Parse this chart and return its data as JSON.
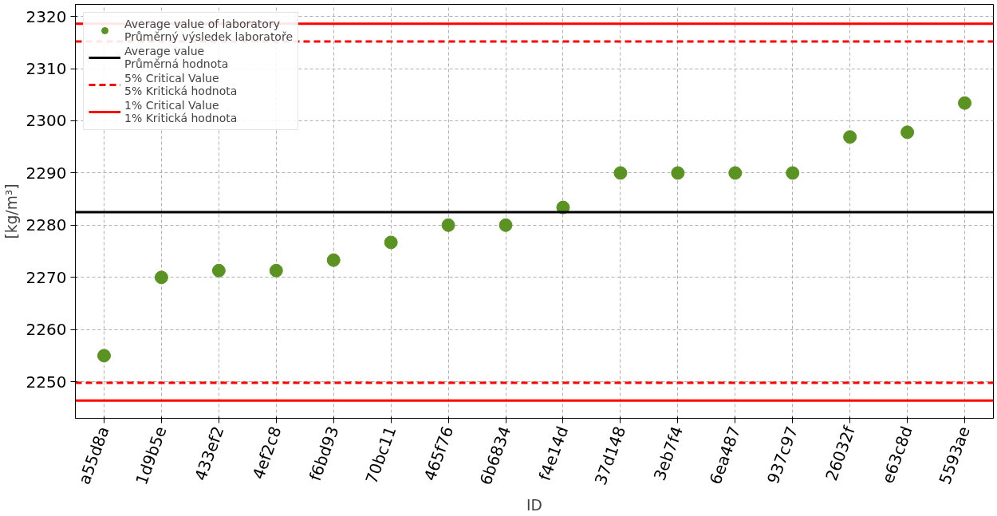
{
  "chart_data": {
    "type": "scatter",
    "xlabel": "ID",
    "ylabel": "[kg/m³]",
    "categories": [
      "a55d8a",
      "1d9b5e",
      "433ef2",
      "4ef2c8",
      "f6bd93",
      "70bc11",
      "465f76",
      "6b6834",
      "f4e14d",
      "37d148",
      "3eb7f4",
      "6ea487",
      "937c97",
      "26032f",
      "e63c8d",
      "5593ae"
    ],
    "series": [
      {
        "name": "Average value of laboratory\nPrůměrný výsledek laboratoře",
        "color": "#5a9322",
        "values": [
          2255,
          2270,
          2271.3,
          2271.3,
          2273.3,
          2276.7,
          2280,
          2280,
          2283.4,
          2290,
          2290,
          2290,
          2290,
          2296.9,
          2297.8,
          2303.4
        ]
      }
    ],
    "ylim": [
      2243,
      2322.3
    ],
    "yticks": [
      2250,
      2260,
      2270,
      2280,
      2290,
      2300,
      2310,
      2320
    ],
    "ref_lines": [
      {
        "axis": "y",
        "value": 2282.5,
        "label": "Average value\nPrůměrná hodnota",
        "color": "#000000",
        "line_style": "solid"
      },
      {
        "axis": "y",
        "value": 2315.2,
        "label": "5% Critical Value\n5% Kritická hodnota",
        "color": "#ff0000",
        "line_style": "dashed"
      },
      {
        "axis": "y",
        "value": 2249.8,
        "color": "#ff0000",
        "line_style": "dashed"
      },
      {
        "axis": "y",
        "value": 2318.6,
        "label": "1% Critical Value\n1% Kritická hodnota",
        "color": "#ff0000",
        "line_style": "solid"
      },
      {
        "axis": "y",
        "value": 2246.4,
        "color": "#ff0000",
        "line_style": "solid"
      }
    ],
    "grid": true,
    "legend": "top left",
    "marker": "circle"
  }
}
